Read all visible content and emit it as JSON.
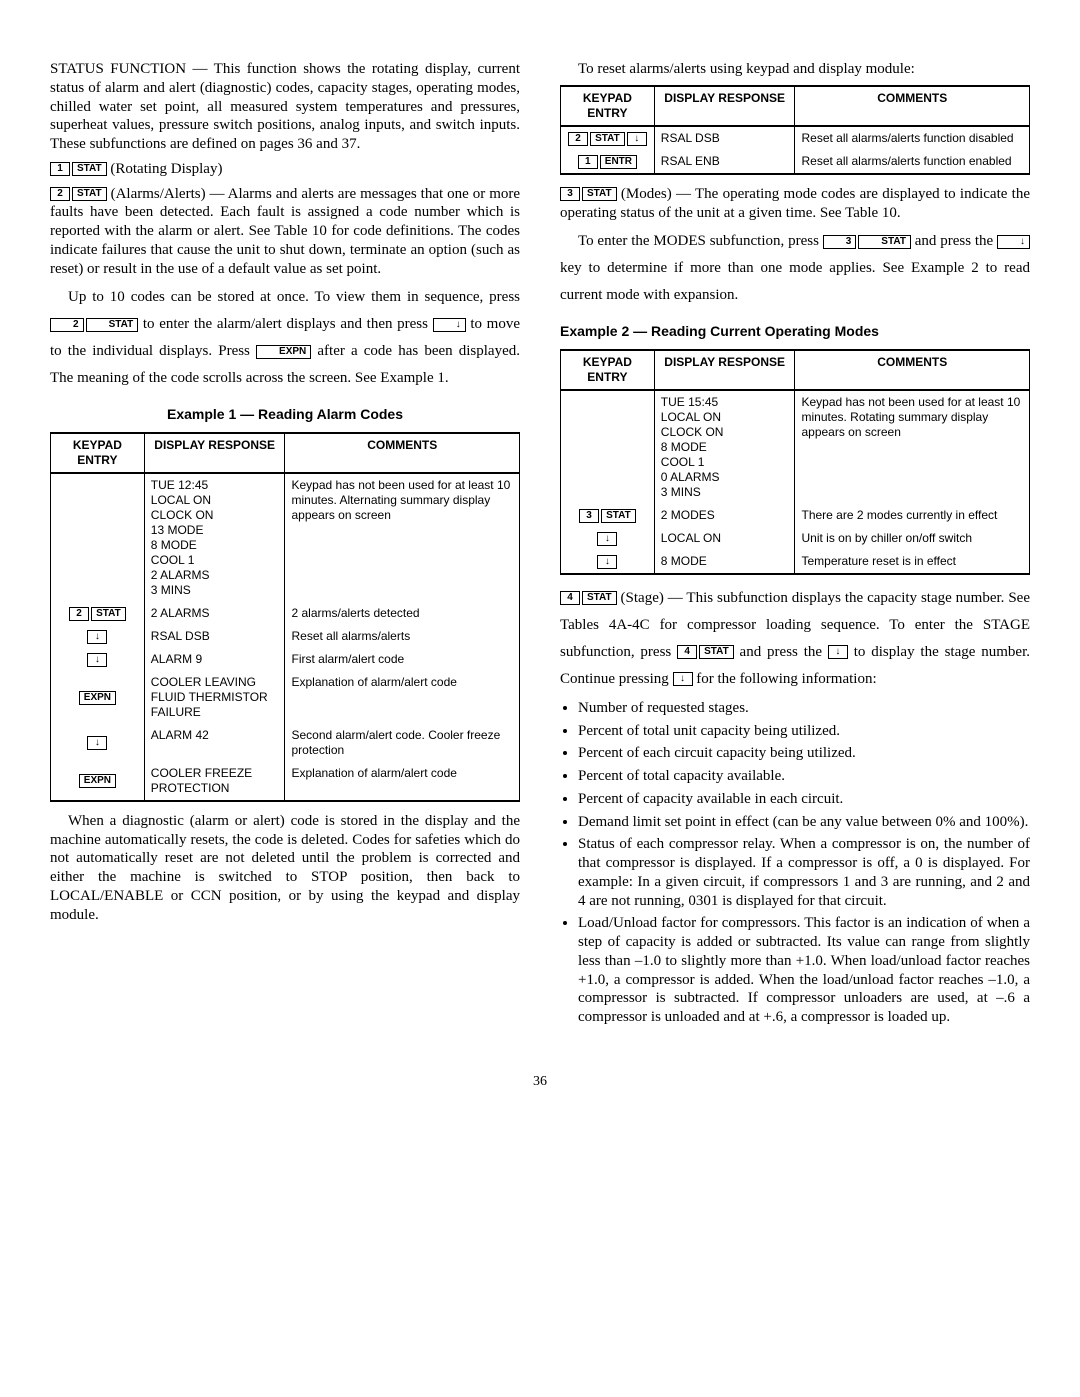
{
  "left": {
    "p1": "STATUS FUNCTION — This function shows the rotating display, current status of alarm and alert (diagnostic) codes, capacity stages, operating modes, chilled water set point, all measured system temperatures and pressures, superheat values, pressure switch positions, analog inputs, and switch inputs. These subfunctions are defined on pages 36 and 37.",
    "rotating_keys": {
      "a": "1",
      "b": "STAT"
    },
    "rotating_label": "   (Rotating Display)",
    "alarms_keys": {
      "a": "2",
      "b": "STAT"
    },
    "p2a": " (Alarms/Alerts) — Alarms and alerts are messages that one or more faults have been detected. Each fault is assigned a code number which is reported with the alarm or alert. See Table 10 for code definitions. The codes indicate failures that cause the unit to shut down, terminate an option (such as reset) or result in the use of a default value as set point.",
    "p3a": "Up to 10 codes can be stored at once. To view them in sequence, press ",
    "p3_keys1": {
      "a": "2",
      "b": "STAT"
    },
    "p3b": " to enter the alarm/alert displays and then press ",
    "p3_keys2": {
      "a": "↓"
    },
    "p3c": " to move to the individual displays. Press ",
    "p3_keys3": {
      "a": "EXPN"
    },
    "p3d": " after a code has been displayed. The meaning of the code scrolls across the screen. See Example 1.",
    "ex1_title": "Example 1 — Reading Alarm Codes",
    "table1": {
      "headers": [
        "KEYPAD ENTRY",
        "DISPLAY RESPONSE",
        "COMMENTS"
      ],
      "rows": [
        {
          "k": "",
          "r": "TUE 12:45\nLOCAL ON\nCLOCK ON\n13 MODE\n8 MODE\nCOOL 1\n2 ALARMS\n3 MINS",
          "c": "Keypad has not been used for at least 10 minutes. Alternating summary display appears on screen"
        },
        {
          "k": "2|STAT",
          "r": "2 ALARMS",
          "c": "2 alarms/alerts detected"
        },
        {
          "k": "↓",
          "r": "RSAL DSB",
          "c": "Reset all alarms/alerts"
        },
        {
          "k": "↓",
          "r": "ALARM 9",
          "c": "First alarm/alert code"
        },
        {
          "k": "EXPN",
          "r": "COOLER LEAVING FLUID THERMISTOR FAILURE",
          "c": "Explanation of alarm/alert code"
        },
        {
          "k": "↓",
          "r": "ALARM 42",
          "c": "Second alarm/alert code. Cooler freeze protection"
        },
        {
          "k": "EXPN",
          "r": "COOLER FREEZE PROTECTION",
          "c": "Explanation of alarm/alert code"
        }
      ]
    },
    "p4": "When a diagnostic (alarm or alert) code is stored in the display and the machine automatically resets, the code is deleted. Codes for safeties which do not automatically reset are not deleted until the problem is corrected and either the machine is switched to STOP position, then back to LOCAL/ENABLE or CCN position, or by using the keypad and display module."
  },
  "right": {
    "p1": "To reset alarms/alerts using keypad and display module:",
    "table2": {
      "headers": [
        "KEYPAD ENTRY",
        "DISPLAY RESPONSE",
        "COMMENTS"
      ],
      "rows": [
        {
          "k": "2|STAT|↓",
          "r": "RSAL DSB",
          "c": "Reset all alarms/alerts function disabled"
        },
        {
          "k": "1|ENTR",
          "r": "RSAL ENB",
          "c": "Reset all alarms/alerts function enabled"
        }
      ]
    },
    "modes_keys": {
      "a": "3",
      "b": "STAT"
    },
    "p2a": " (Modes) — The operating mode codes are displayed to indicate the operating status of the unit at a given time. See Table 10.",
    "p3a": "To enter the MODES subfunction, press ",
    "p3_keys1": {
      "a": "3",
      "b": "STAT"
    },
    "p3b": " and press the ",
    "p3_keys2": {
      "a": "↓"
    },
    "p3c": " key to determine if more than one mode applies. See Example 2 to read current mode with expansion.",
    "ex2_title": "Example 2 — Reading Current Operating Modes",
    "table3": {
      "headers": [
        "KEYPAD ENTRY",
        "DISPLAY RESPONSE",
        "COMMENTS"
      ],
      "rows": [
        {
          "k": "",
          "r": "TUE 15:45\nLOCAL ON\nCLOCK ON\n8 MODE\nCOOL 1\n0 ALARMS\n3 MINS",
          "c": "Keypad has not been used for at least 10 minutes. Rotating summary display appears on screen"
        },
        {
          "k": "3|STAT",
          "r": "2 MODES",
          "c": "There are 2 modes currently in effect"
        },
        {
          "k": "↓",
          "r": "LOCAL ON",
          "c": "Unit is on by chiller on/off switch"
        },
        {
          "k": "↓",
          "r": "8 MODE",
          "c": "Temperature reset is in effect"
        }
      ]
    },
    "stage_keys": {
      "a": "4",
      "b": "STAT"
    },
    "p4a": " (Stage) — This subfunction displays the capacity stage number. See Tables 4A-4C for compressor loading sequence. To enter the STAGE subfunction, press ",
    "p4_keys1": {
      "a": "4",
      "b": "STAT"
    },
    "p4b": " and press the ",
    "p4_keys2": {
      "a": "↓"
    },
    "p4c": " to display the stage number. Continue pressing ",
    "p4_keys3": {
      "a": "↓"
    },
    "p4d": " for the following information:",
    "bullets": [
      "Number of requested stages.",
      "Percent of total unit capacity being utilized.",
      "Percent of each circuit capacity being utilized.",
      "Percent of total capacity available.",
      "Percent of capacity available in each circuit.",
      "Demand limit set point in effect (can be any value between 0% and 100%).",
      "Status of each compressor relay. When a compressor is on, the number of that compressor is displayed. If a compressor is off, a 0 is displayed. For example: In a given circuit, if compressors 1 and 3 are running, and 2 and 4 are not running, 0301 is displayed for that circuit.",
      "Load/Unload factor for compressors. This factor is an indication of when a step of capacity is added or subtracted. Its value can range from slightly less than –1.0 to slightly more than +1.0. When load/unload factor reaches +1.0, a compressor is added. When the load/unload factor reaches –1.0, a compressor is subtracted. If compressor unloaders are used, at –.6 a compressor is unloaded and at +.6, a compressor is loaded up."
    ]
  },
  "pagenum": "36"
}
